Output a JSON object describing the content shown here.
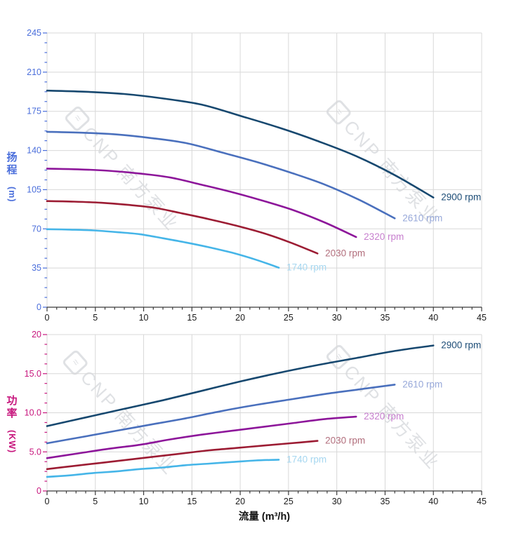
{
  "app": {
    "background": "#ffffff"
  },
  "watermark": {
    "text": "CNP 南方泵业",
    "logo_glyph": "≈",
    "color": "#aab1b9",
    "instances": 4
  },
  "titles": {
    "head_axis_text": "扬程",
    "head_axis_unit": "(m)",
    "power_axis_text": "功率",
    "power_axis_unit": "(KW)",
    "flow_axis_title": "流量 (m³/h)"
  },
  "chart_data": [
    {
      "type": "line",
      "id": "head",
      "title": "",
      "xlabel": "",
      "ylabel": "扬程 (m)",
      "xlim": [
        0,
        45
      ],
      "ylim": [
        0,
        245
      ],
      "grid": true,
      "axis_color": "#4a6edb",
      "x_axis_color": "#3b3b3b",
      "x_tick_label_color": "#1a1a1a",
      "grid_color": "#d8d8d8",
      "x_tick_values": [
        0,
        5,
        10,
        15,
        20,
        25,
        30,
        35,
        40,
        45
      ],
      "x_tick_labels": [
        "0",
        "5",
        "10",
        "15",
        "20",
        "25",
        "30",
        "35",
        "40",
        "45"
      ],
      "y_tick_values": [
        0,
        35,
        70,
        105,
        140,
        175,
        210,
        245
      ],
      "y_tick_labels": [
        "0",
        "35",
        "70",
        "105",
        "140",
        "175",
        "210",
        "245"
      ],
      "x_minor_step": 1,
      "y_minor_step": 8.75,
      "series": [
        {
          "name": "2900 rpm",
          "rpm": 2900,
          "color": "#17486f",
          "label_color": "#1d4d77",
          "points": [
            [
              0,
              193.5
            ],
            [
              4,
              192.5
            ],
            [
              8,
              190.5
            ],
            [
              12,
              186.5
            ],
            [
              16,
              181
            ],
            [
              20,
              171
            ],
            [
              24,
              160.5
            ],
            [
              28,
              148.5
            ],
            [
              32,
              135
            ],
            [
              36,
              118
            ],
            [
              40,
              98
            ]
          ]
        },
        {
          "name": "2610 rpm",
          "rpm": 2610,
          "color": "#4a70bd",
          "label_color": "#97a8d9",
          "points": [
            [
              0,
              156.7
            ],
            [
              3.6,
              155.9
            ],
            [
              7.2,
              154.3
            ],
            [
              10.8,
              151.1
            ],
            [
              14.4,
              146.6
            ],
            [
              18,
              138.5
            ],
            [
              21.6,
              130
            ],
            [
              25.2,
              120.3
            ],
            [
              28.8,
              109.4
            ],
            [
              32.4,
              95.6
            ],
            [
              36,
              79.4
            ]
          ]
        },
        {
          "name": "2320 rpm",
          "rpm": 2320,
          "color": "#8d169a",
          "label_color": "#c77fce",
          "points": [
            [
              0,
              123.8
            ],
            [
              3.2,
              123.2
            ],
            [
              6.4,
              121.9
            ],
            [
              9.6,
              119.4
            ],
            [
              12.8,
              115.8
            ],
            [
              16,
              109.4
            ],
            [
              19.2,
              102.7
            ],
            [
              22.4,
              95
            ],
            [
              25.6,
              86.4
            ],
            [
              28.8,
              75.5
            ],
            [
              32,
              62.7
            ]
          ]
        },
        {
          "name": "2030 rpm",
          "rpm": 2030,
          "color": "#9c1c33",
          "label_color": "#b26f7d",
          "points": [
            [
              0,
              94.8
            ],
            [
              2.8,
              94.3
            ],
            [
              5.6,
              93.3
            ],
            [
              8.4,
              91.4
            ],
            [
              11.2,
              88.7
            ],
            [
              14,
              83.8
            ],
            [
              16.8,
              78.6
            ],
            [
              19.6,
              72.8
            ],
            [
              22.4,
              66.2
            ],
            [
              25.2,
              57.8
            ],
            [
              28,
              48
            ]
          ]
        },
        {
          "name": "1740 rpm",
          "rpm": 1740,
          "color": "#45b5e8",
          "label_color": "#a6d7f0",
          "points": [
            [
              0,
              69.7
            ],
            [
              2.4,
              69.3
            ],
            [
              4.8,
              68.6
            ],
            [
              7.2,
              67.1
            ],
            [
              9.6,
              65.2
            ],
            [
              12,
              61.6
            ],
            [
              14.4,
              57.8
            ],
            [
              16.8,
              53.5
            ],
            [
              19.2,
              48.6
            ],
            [
              21.6,
              42.5
            ],
            [
              24,
              35.3
            ]
          ]
        }
      ]
    },
    {
      "type": "line",
      "id": "power",
      "title": "",
      "xlabel": "流量 (m³/h)",
      "ylabel": "功率 (KW)",
      "xlim": [
        0,
        45
      ],
      "ylim": [
        0,
        20
      ],
      "grid": true,
      "axis_color": "#c7167d",
      "x_axis_color": "#3b3b3b",
      "x_tick_label_color": "#1a1a1a",
      "grid_color": "#d8d8d8",
      "x_tick_values": [
        0,
        5,
        10,
        15,
        20,
        25,
        30,
        35,
        40,
        45
      ],
      "x_tick_labels": [
        "0",
        "5",
        "10",
        "15",
        "20",
        "25",
        "30",
        "35",
        "40",
        "45"
      ],
      "y_tick_values": [
        0,
        5,
        10,
        15,
        20
      ],
      "y_tick_labels": [
        "0",
        "5.0",
        "10.0",
        "15.0",
        "20"
      ],
      "x_minor_step": 1,
      "y_minor_step": 1.25,
      "series": [
        {
          "name": "2900 rpm",
          "rpm": 2900,
          "color": "#17486f",
          "label_color": "#1d4d77",
          "points": [
            [
              0,
              8.3
            ],
            [
              4,
              9.4
            ],
            [
              8,
              10.5
            ],
            [
              12,
              11.6
            ],
            [
              16,
              12.8
            ],
            [
              20,
              14
            ],
            [
              24,
              15.1
            ],
            [
              28,
              16.1
            ],
            [
              32,
              17
            ],
            [
              36,
              17.9
            ],
            [
              40,
              18.6
            ]
          ]
        },
        {
          "name": "2610 rpm",
          "rpm": 2610,
          "color": "#4a70bd",
          "label_color": "#97a8d9",
          "points": [
            [
              0,
              6.1
            ],
            [
              3.6,
              6.9
            ],
            [
              7.2,
              7.7
            ],
            [
              10.8,
              8.5
            ],
            [
              14.4,
              9.3
            ],
            [
              18,
              10.2
            ],
            [
              21.6,
              11
            ],
            [
              25.2,
              11.7
            ],
            [
              28.8,
              12.4
            ],
            [
              32.4,
              13
            ],
            [
              36,
              13.6
            ]
          ]
        },
        {
          "name": "2320 rpm",
          "rpm": 2320,
          "color": "#8d169a",
          "label_color": "#c77fce",
          "points": [
            [
              0,
              4.2
            ],
            [
              3.2,
              4.8
            ],
            [
              6.4,
              5.4
            ],
            [
              9.6,
              5.9
            ],
            [
              12.8,
              6.6
            ],
            [
              16,
              7.2
            ],
            [
              19.2,
              7.7
            ],
            [
              22.4,
              8.2
            ],
            [
              25.6,
              8.7
            ],
            [
              28.8,
              9.2
            ],
            [
              32,
              9.5
            ]
          ]
        },
        {
          "name": "2030 rpm",
          "rpm": 2030,
          "color": "#9c1c33",
          "label_color": "#b26f7d",
          "points": [
            [
              0,
              2.8
            ],
            [
              2.8,
              3.2
            ],
            [
              5.6,
              3.6
            ],
            [
              8.4,
              4
            ],
            [
              11.2,
              4.4
            ],
            [
              14,
              4.8
            ],
            [
              16.8,
              5.2
            ],
            [
              19.6,
              5.5
            ],
            [
              22.4,
              5.8
            ],
            [
              25.2,
              6.1
            ],
            [
              28,
              6.4
            ]
          ]
        },
        {
          "name": "1740 rpm",
          "rpm": 1740,
          "color": "#45b5e8",
          "label_color": "#a6d7f0",
          "points": [
            [
              0,
              1.8
            ],
            [
              2.4,
              2
            ],
            [
              4.8,
              2.3
            ],
            [
              7.2,
              2.5
            ],
            [
              9.6,
              2.8
            ],
            [
              12,
              3
            ],
            [
              14.4,
              3.3
            ],
            [
              16.8,
              3.5
            ],
            [
              19.2,
              3.7
            ],
            [
              21.6,
              3.9
            ],
            [
              24,
              4
            ]
          ]
        }
      ]
    }
  ]
}
